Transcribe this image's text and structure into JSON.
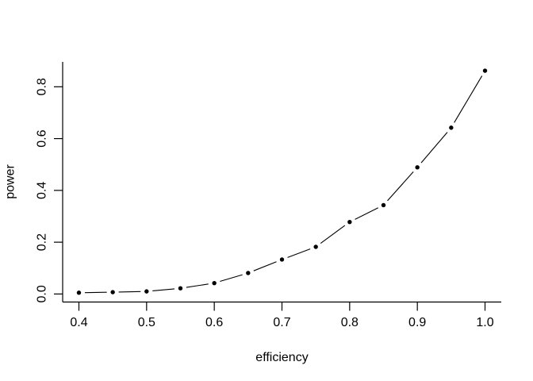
{
  "figure": {
    "background": "#ffffff",
    "foreground": "#000000"
  },
  "chart_data": {
    "type": "line",
    "marker_style": "filled-circle",
    "line_style": "solid-segments-with-point-gaps",
    "title": "",
    "xlabel": "efficiency",
    "ylabel": "power",
    "x": [
      0.4,
      0.45,
      0.5,
      0.55,
      0.6,
      0.65,
      0.7,
      0.75,
      0.8,
      0.85,
      0.9,
      0.95,
      1.0
    ],
    "y": [
      0.005,
      0.007,
      0.01,
      0.022,
      0.042,
      0.081,
      0.133,
      0.182,
      0.278,
      0.343,
      0.489,
      0.642,
      0.862
    ],
    "x_ticks": [
      0.4,
      0.5,
      0.6,
      0.7,
      0.8,
      0.9,
      1.0
    ],
    "x_tick_labels": [
      "0.4",
      "0.5",
      "0.6",
      "0.7",
      "0.8",
      "0.9",
      "1.0"
    ],
    "y_ticks": [
      0.0,
      0.2,
      0.4,
      0.6,
      0.8
    ],
    "y_tick_labels": [
      "0.0",
      "0.2",
      "0.4",
      "0.6",
      "0.8"
    ],
    "xlim": [
      0.376,
      1.024
    ],
    "ylim": [
      -0.031,
      0.896
    ],
    "grid": false,
    "legend": null,
    "series_color": "#000000"
  }
}
